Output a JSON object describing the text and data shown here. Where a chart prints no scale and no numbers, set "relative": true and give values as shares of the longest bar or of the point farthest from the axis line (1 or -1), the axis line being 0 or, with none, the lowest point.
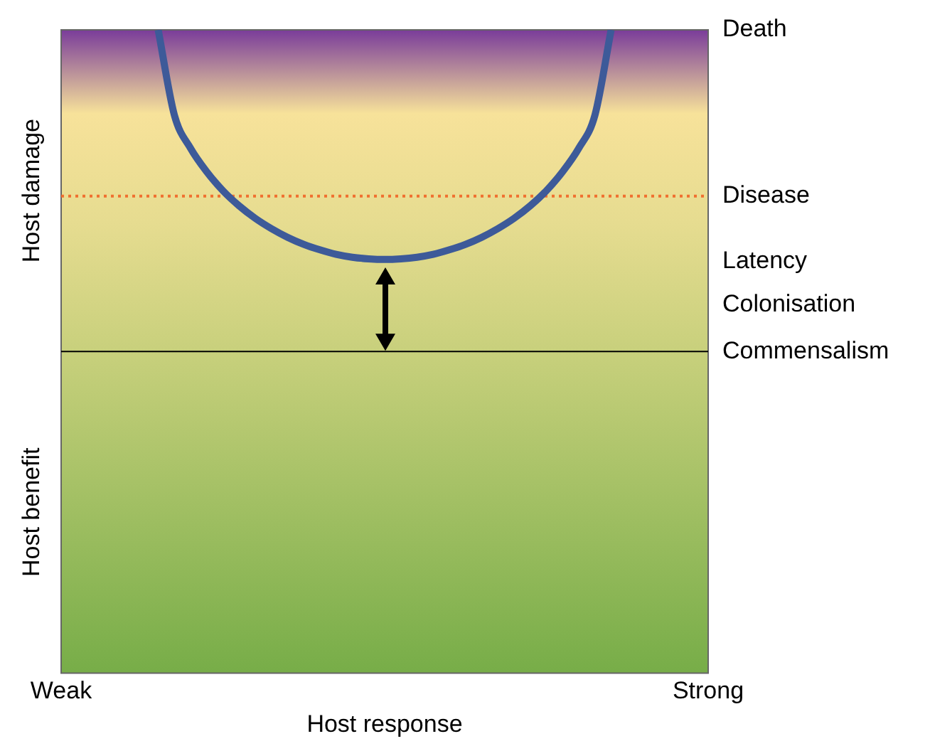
{
  "chart_data": {
    "type": "line",
    "relative": true,
    "xlabel": "Host response",
    "ylabel": "Host damage",
    "annotations": [
      "Host benefit",
      "Death",
      "Latency",
      "Colonisation"
    ],
    "categories": [
      "Weak",
      null,
      null,
      null,
      null,
      null,
      null,
      null,
      null,
      null,
      null,
      null,
      null,
      null,
      null,
      null,
      null,
      null,
      null,
      null,
      null,
      null,
      null,
      null,
      null,
      null,
      null,
      null,
      null,
      null,
      null,
      null,
      null,
      null,
      null,
      null,
      null,
      null,
      null,
      null,
      "Strong"
    ],
    "series": [
      {
        "color": "#3d5a99",
        "values": [
          null,
          null,
          null,
          null,
          null,
          null,
          1.0,
          0.735,
          0.632,
          0.559,
          0.5,
          0.453,
          0.414,
          0.382,
          0.355,
          0.333,
          0.316,
          0.302,
          0.293,
          0.288,
          0.286,
          0.288,
          0.293,
          0.302,
          0.316,
          0.333,
          0.355,
          0.382,
          0.414,
          0.453,
          0.5,
          0.559,
          0.632,
          0.735,
          1.0,
          null,
          null,
          null,
          null,
          null,
          null
        ]
      }
    ],
    "ref_lines": [
      {
        "axis": "y",
        "value": 0.483,
        "label": "Disease",
        "color": "#f07030",
        "line_style": "dotted"
      },
      {
        "axis": "y",
        "value": 0,
        "label": "Commensalism",
        "color": "#000000",
        "line_style": "solid"
      }
    ],
    "legend": false,
    "marker": "none",
    "line_style": "solid"
  }
}
